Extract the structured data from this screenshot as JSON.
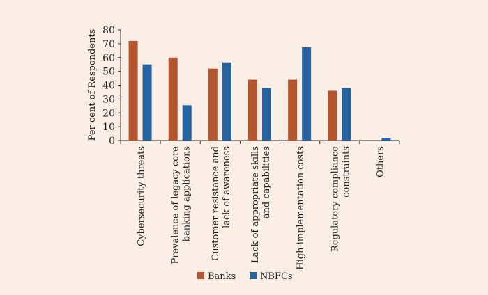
{
  "chart_data": {
    "type": "bar",
    "title": "",
    "xlabel": "",
    "ylabel": "Per cent of Respondents",
    "ylim": [
      0,
      80
    ],
    "yticks": [
      0,
      10,
      20,
      30,
      40,
      50,
      60,
      70,
      80
    ],
    "grid": false,
    "legend_position": "bottom",
    "categories": [
      [
        "Cybersecurity threats"
      ],
      [
        "Prevalence of legacy core",
        "banking applications"
      ],
      [
        "Customer resistance and",
        "lack of awareness"
      ],
      [
        "Lack of appropriate skills",
        "and capabilities"
      ],
      [
        "High implementation costs"
      ],
      [
        "Regulatory compliance",
        "constraints"
      ],
      [
        "Others"
      ]
    ],
    "series": [
      {
        "name": "Banks",
        "color": "#b5562e",
        "values": [
          72,
          60,
          52,
          44,
          44,
          36,
          0
        ]
      },
      {
        "name": "NBFCs",
        "color": "#2563a0",
        "values": [
          55,
          25.5,
          56.5,
          38,
          67.5,
          38,
          2
        ]
      }
    ]
  }
}
